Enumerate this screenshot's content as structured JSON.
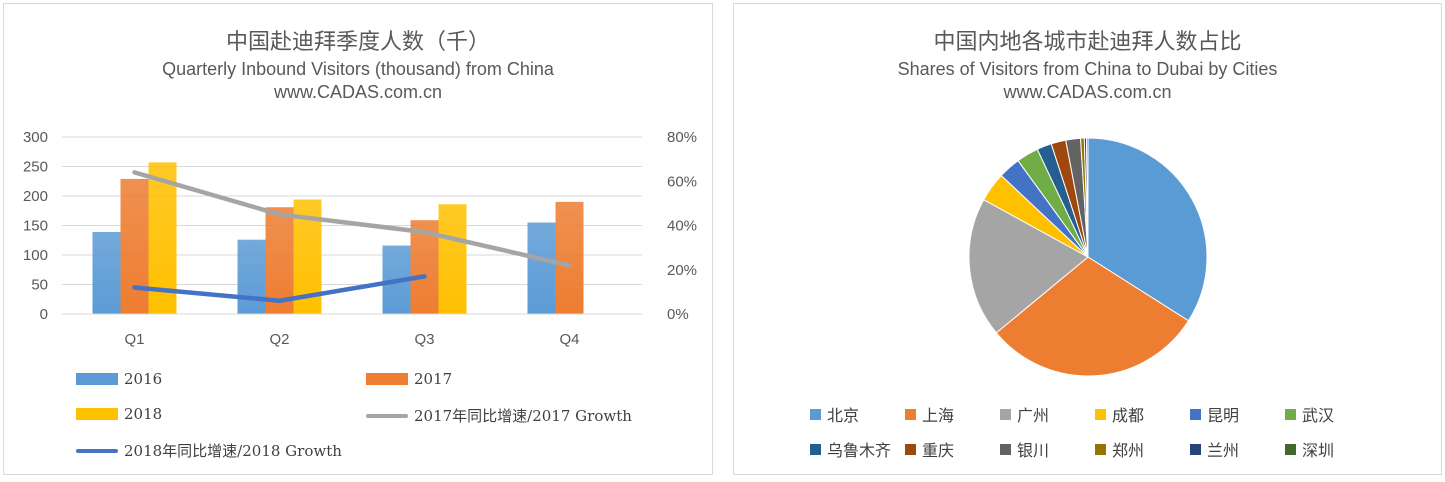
{
  "left": {
    "title": "中国赴迪拜季度人数（千）",
    "subtitle": "Quarterly Inbound Visitors (thousand) from China",
    "source": "www.CADAS.com.cn"
  },
  "right": {
    "title": "中国内地各城市赴迪拜人数占比",
    "subtitle": "Shares of Visitors from China to Dubai by Cities",
    "source": "www.CADAS.com.cn"
  },
  "chart_data": [
    {
      "type": "bar",
      "combo": "bar + line (secondary axis)",
      "title": "中国赴迪拜季度人数（千）",
      "subtitle": "Quarterly Inbound Visitors (thousand) from China",
      "categories": [
        "Q1",
        "Q2",
        "Q3",
        "Q4"
      ],
      "ylim": [
        0,
        300
      ],
      "yticks": [
        "300",
        "250",
        "200",
        "150",
        "100",
        "50",
        "0"
      ],
      "y2lim": [
        0,
        0.8
      ],
      "y2ticks": [
        "80%",
        "60%",
        "40%",
        "20%",
        "0%"
      ],
      "grid": true,
      "legend_position": "bottom",
      "series": [
        {
          "name": "2016",
          "type": "bar",
          "color": "#5b9bd5",
          "values": [
            139,
            126,
            116,
            155
          ]
        },
        {
          "name": "2017",
          "type": "bar",
          "color": "#ed7d31",
          "values": [
            229,
            181,
            159,
            190
          ]
        },
        {
          "name": "2018",
          "type": "bar",
          "color": "#ffc000",
          "values": [
            257,
            194,
            186,
            null
          ]
        },
        {
          "name": "2017年同比增速/2017 Growth",
          "type": "line",
          "axis": "secondary",
          "color": "#a5a5a5",
          "values": [
            0.64,
            0.45,
            0.37,
            0.22
          ]
        },
        {
          "name": "2018年同比增速/2018 Growth",
          "type": "line",
          "axis": "secondary",
          "color": "#4472c4",
          "values": [
            0.12,
            0.06,
            0.17,
            null
          ]
        }
      ]
    },
    {
      "type": "pie",
      "title": "中国内地各城市赴迪拜人数占比",
      "subtitle": "Shares of Visitors from China to Dubai by Cities",
      "legend_position": "bottom",
      "slices": [
        {
          "label": "北京",
          "value": 0.34,
          "color": "#5b9bd5"
        },
        {
          "label": "上海",
          "value": 0.3,
          "color": "#ed7d31"
        },
        {
          "label": "广州",
          "value": 0.19,
          "color": "#a5a5a5"
        },
        {
          "label": "成都",
          "value": 0.04,
          "color": "#ffc000"
        },
        {
          "label": "昆明",
          "value": 0.03,
          "color": "#4472c4"
        },
        {
          "label": "武汉",
          "value": 0.03,
          "color": "#70ad47"
        },
        {
          "label": "乌鲁木齐",
          "value": 0.02,
          "color": "#255e91"
        },
        {
          "label": "重庆",
          "value": 0.02,
          "color": "#9e480e"
        },
        {
          "label": "银川",
          "value": 0.02,
          "color": "#636363"
        },
        {
          "label": "郑州",
          "value": 0.005,
          "color": "#997300"
        },
        {
          "label": "兰州",
          "value": 0.003,
          "color": "#264478"
        },
        {
          "label": "深圳",
          "value": 0.002,
          "color": "#43682b"
        }
      ]
    }
  ]
}
